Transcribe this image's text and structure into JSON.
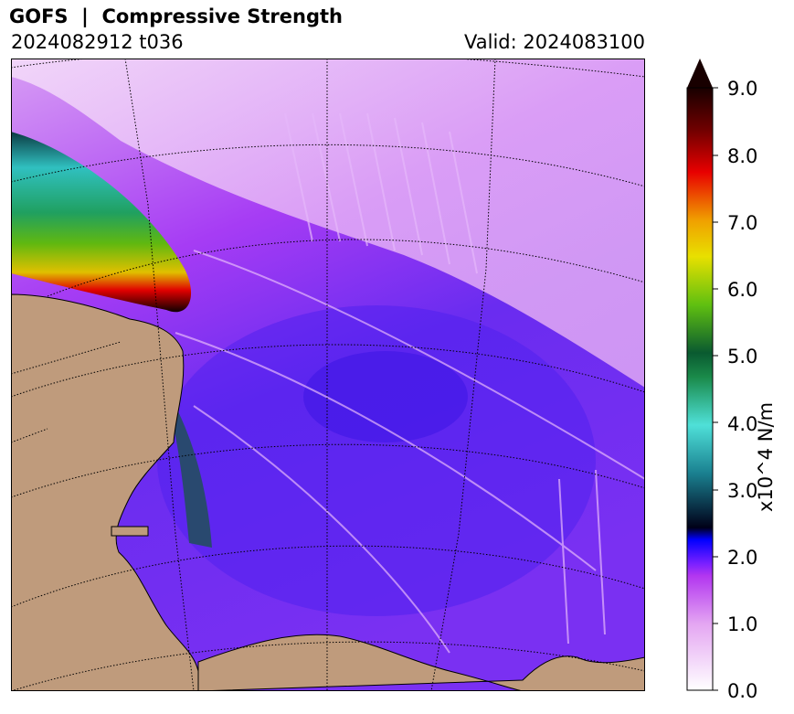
{
  "header": {
    "title": "GOFS  |  Compressive Strength",
    "run": "2024082912 t036",
    "valid": "Valid: 2024083100"
  },
  "colorbar": {
    "label": "x10^4 N/m",
    "ticks": [
      "0.0",
      "1.0",
      "2.0",
      "3.0",
      "4.0",
      "5.0",
      "6.0",
      "7.0",
      "8.0",
      "9.0"
    ],
    "min": 0.0,
    "max": 9.0,
    "extend": "max",
    "colors": {
      "c0": "#ffffff",
      "c1": "#e4a6f2",
      "c2": "#b236f0",
      "c2b": "#5a14ff",
      "c3": "#0000ff",
      "c3b": "#0a3540",
      "c4": "#4fe0d8",
      "c5": "#1a8a4a",
      "c6": "#60c010",
      "c65": "#d8e000",
      "c7": "#f0a000",
      "c8": "#e80000",
      "c9": "#180000"
    }
  },
  "map": {
    "land_color": "#bf9b7c",
    "ice_low_color": "#e8c8f8",
    "ice_mid_color": "#b040f5",
    "ice_high_color": "#5a28f0",
    "graticule": "dotted"
  }
}
